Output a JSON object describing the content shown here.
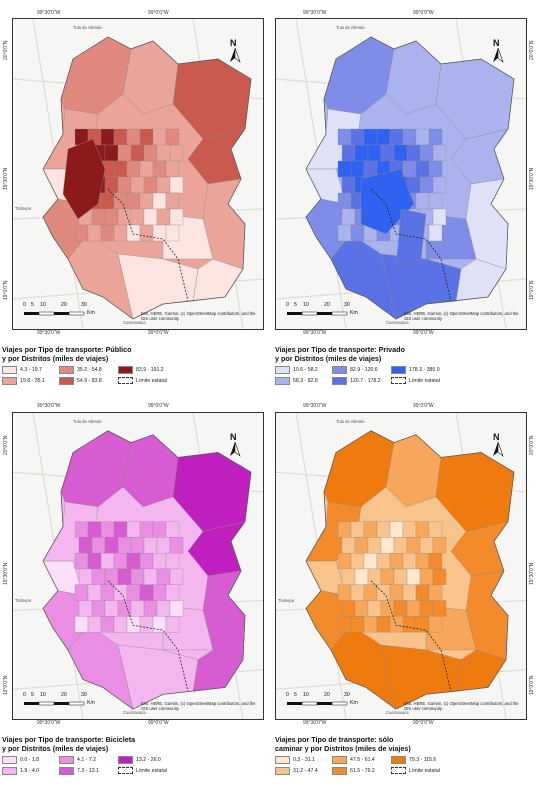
{
  "coords": {
    "top_left": "99°30'0\"W",
    "top_right": "99°0'0\"W",
    "side_top": "20°0'0\"N",
    "side_mid": "19°30'0\"N",
    "side_bot": "19°0'0\"N"
  },
  "places": {
    "tula": "Tula de Allende",
    "tlalnepantla": "Tlalnepa",
    "cuernavaca": "Cuernavaca"
  },
  "scale": {
    "ticks": [
      "0",
      "5",
      "10",
      "20",
      "30"
    ],
    "unit": "Km"
  },
  "credit": "Esri, HERE, Garmin, (c) OpenStreetMap contributors, and the GIS user community",
  "north_label": "N",
  "boundary_label": "Límite estatal",
  "maps": [
    {
      "id": "publico",
      "title_line1": "Viajes por Tipo de transporte: Público",
      "title_line2": "y por Distritos (miles de viajes)",
      "classes": [
        {
          "label": "4.3 - 19.7",
          "color": "#fce4e1"
        },
        {
          "label": "19.8 - 35.1",
          "color": "#eba49a"
        },
        {
          "label": "35.2 - 54.8",
          "color": "#e08a7f"
        },
        {
          "label": "54.9 - 83.8",
          "color": "#c95a4d"
        },
        {
          "label": "83.9 - 191.2",
          "color": "#8c1a1a"
        }
      ]
    },
    {
      "id": "privado",
      "title_line1": "Viajes por Tipo de transporte: Privado",
      "title_line2": "y por Distritos (miles de viajes)",
      "classes": [
        {
          "label": "10.6 - 58.2",
          "color": "#dfe2f7"
        },
        {
          "label": "58.3 - 82.8",
          "color": "#aab3ee"
        },
        {
          "label": "82.9 - 120.6",
          "color": "#7f8de8"
        },
        {
          "label": "120.7 - 178.2",
          "color": "#5a72e6"
        },
        {
          "label": "178.3 - 385.0",
          "color": "#2f62f0"
        }
      ]
    },
    {
      "id": "bicicleta",
      "title_line1": "Viajes por Tipo de transporte: Bicicleta",
      "title_line2": "y por Distritos (miles de viajes)",
      "classes": [
        {
          "label": "0.0 - 1.8",
          "color": "#fbdff8"
        },
        {
          "label": "1.9 - 4.0",
          "color": "#f4b6ee"
        },
        {
          "label": "4.1 - 7.2",
          "color": "#e98ee3"
        },
        {
          "label": "7.3 - 13.1",
          "color": "#d75bd1"
        },
        {
          "label": "13.2 - 26.0",
          "color": "#c01fc0"
        }
      ]
    },
    {
      "id": "caminar",
      "title_line1": "Viajes por Tipo de transporte: sólo",
      "title_line2": "caminar y por Distritos (miles de viajes)",
      "classes": [
        {
          "label": "0.3 - 31.1",
          "color": "#fde8cf"
        },
        {
          "label": "31.2 - 47.4",
          "color": "#f9c48c"
        },
        {
          "label": "47.5 - 61.4",
          "color": "#f7a65a"
        },
        {
          "label": "61.5 - 79.2",
          "color": "#f38a2b"
        },
        {
          "label": "79.3 - 115.6",
          "color": "#ef7a0e"
        }
      ]
    }
  ]
}
